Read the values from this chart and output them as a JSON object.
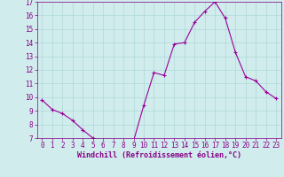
{
  "x": [
    0,
    1,
    2,
    3,
    4,
    5,
    6,
    7,
    8,
    9,
    10,
    11,
    12,
    13,
    14,
    15,
    16,
    17,
    18,
    19,
    20,
    21,
    22,
    23
  ],
  "y": [
    9.8,
    9.1,
    8.8,
    8.3,
    7.6,
    7.0,
    6.8,
    6.7,
    6.65,
    6.8,
    9.4,
    11.8,
    11.6,
    13.9,
    14.0,
    15.5,
    16.3,
    17.0,
    15.8,
    13.3,
    11.5,
    11.2,
    10.4,
    9.9
  ],
  "line_color": "#990099",
  "marker": "+",
  "marker_size": 3.5,
  "marker_lw": 0.8,
  "line_width": 0.8,
  "bg_color": "#d0ecec",
  "grid_color": "#b0d8d8",
  "xlabel": "Windchill (Refroidissement éolien,°C)",
  "xlabel_color": "#880088",
  "tick_color": "#880088",
  "spine_color": "#880088",
  "ylim": [
    7,
    17
  ],
  "xlim": [
    -0.5,
    23.5
  ],
  "yticks": [
    7,
    8,
    9,
    10,
    11,
    12,
    13,
    14,
    15,
    16,
    17
  ],
  "xticks": [
    0,
    1,
    2,
    3,
    4,
    5,
    6,
    7,
    8,
    9,
    10,
    11,
    12,
    13,
    14,
    15,
    16,
    17,
    18,
    19,
    20,
    21,
    22,
    23
  ],
  "tick_fontsize": 5.5,
  "xlabel_fontsize": 6.0
}
